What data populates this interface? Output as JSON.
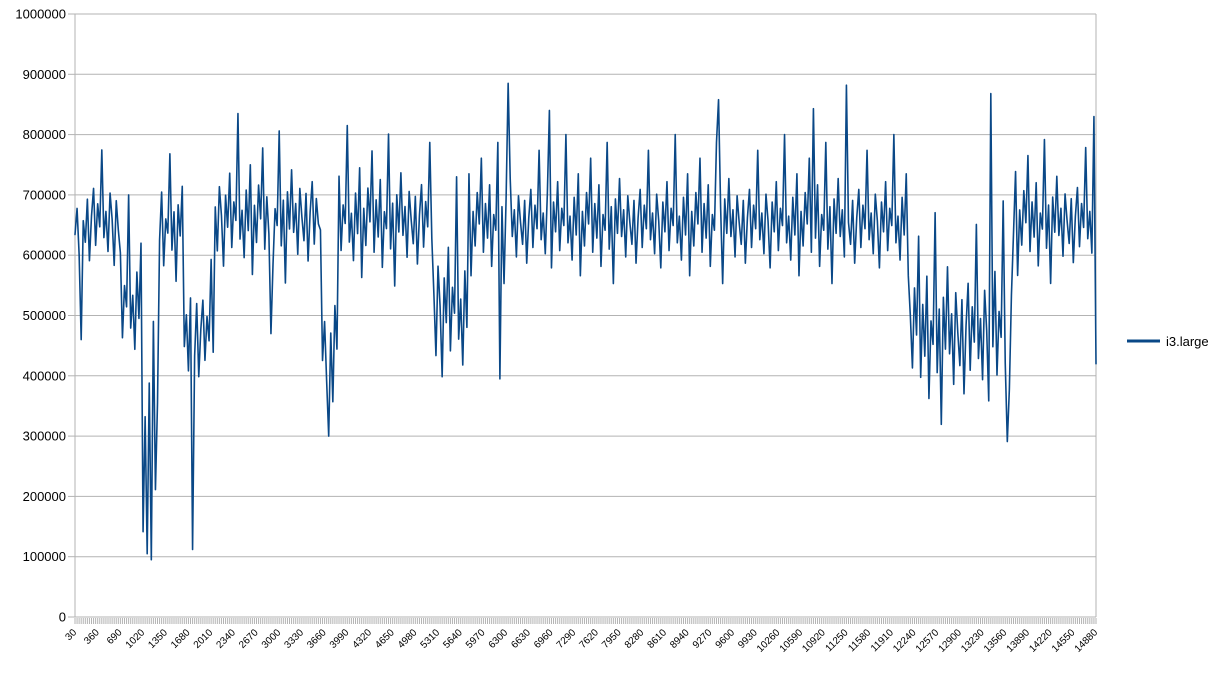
{
  "chart_data": {
    "type": "line",
    "title": "",
    "xlabel": "",
    "ylabel": "",
    "ylim": [
      0,
      1000000
    ],
    "y_ticks": [
      0,
      100000,
      200000,
      300000,
      400000,
      500000,
      600000,
      700000,
      800000,
      900000,
      1000000
    ],
    "x": {
      "start": 30,
      "step": 30,
      "end": 14880,
      "n_points": 496
    },
    "x_label_every_n_points": 11,
    "x_tick_labels": [
      "30",
      "360",
      "690",
      "1020",
      "1350",
      "1680",
      "2010",
      "2340",
      "2670",
      "3000",
      "3330",
      "3660",
      "3990",
      "4320",
      "4650",
      "4980",
      "5310",
      "5640",
      "5970",
      "6300",
      "6630",
      "6960",
      "7290",
      "7620",
      "7950",
      "8280",
      "8610",
      "8940",
      "9270",
      "9600",
      "9930",
      "10260",
      "10590",
      "10920",
      "11250",
      "11580",
      "11910",
      "12240",
      "12570",
      "12900",
      "13230",
      "13560",
      "13890",
      "14220",
      "14550",
      "14880"
    ],
    "grid": "horizontal",
    "legend_position": "right-middle",
    "colors": {
      "grid": "#b3b3b3",
      "axis": "#b3b3b3",
      "text": "#000000",
      "background": "#ffffff"
    },
    "series": [
      {
        "name": "i3.large",
        "color": "#0a4887",
        "approx_values_at_labeled_x": [
          650000,
          650000,
          620000,
          400000,
          650000,
          500000,
          480000,
          660000,
          665000,
          655000,
          660000,
          480000,
          650000,
          655000,
          660000,
          650000,
          520000,
          470000,
          655000,
          660000,
          650000,
          655000,
          650000,
          655000,
          650000,
          655000,
          650000,
          655000,
          650000,
          655000,
          650000,
          655000,
          650000,
          655000,
          660000,
          650000,
          655000,
          640000,
          520000,
          510000,
          520000,
          490000,
          640000,
          650000,
          655000,
          630000
        ],
        "band_segments": [
          {
            "from": 30,
            "to": 660,
            "min": 545000,
            "max": 800000
          },
          {
            "from": 661,
            "to": 1015,
            "min": 380000,
            "max": 700000
          },
          {
            "from": 1016,
            "to": 1230,
            "min": 95000,
            "max": 560000
          },
          {
            "from": 1231,
            "to": 1595,
            "min": 545000,
            "max": 780000
          },
          {
            "from": 1596,
            "to": 1820,
            "min": 340000,
            "max": 650000
          },
          {
            "from": 1821,
            "to": 2040,
            "min": 350000,
            "max": 620000
          },
          {
            "from": 2041,
            "to": 3570,
            "min": 540000,
            "max": 820000
          },
          {
            "from": 3571,
            "to": 3840,
            "min": 300000,
            "max": 680000
          },
          {
            "from": 3841,
            "to": 5220,
            "min": 535000,
            "max": 815000
          },
          {
            "from": 5221,
            "to": 5730,
            "min": 340000,
            "max": 730000
          },
          {
            "from": 5731,
            "to": 12150,
            "min": 540000,
            "max": 800000
          },
          {
            "from": 12151,
            "to": 13660,
            "min": 300000,
            "max": 690000
          },
          {
            "from": 13661,
            "to": 14880,
            "min": 540000,
            "max": 805000
          }
        ],
        "spikes": [
          {
            "x": 120,
            "y": 460000
          },
          {
            "x": 1080,
            "y": 105000
          },
          {
            "x": 1140,
            "y": 95000
          },
          {
            "x": 1740,
            "y": 112000
          },
          {
            "x": 2400,
            "y": 835000
          },
          {
            "x": 2880,
            "y": 470000
          },
          {
            "x": 3720,
            "y": 300000
          },
          {
            "x": 6210,
            "y": 395000
          },
          {
            "x": 6330,
            "y": 885000
          },
          {
            "x": 6930,
            "y": 840000
          },
          {
            "x": 9390,
            "y": 858000
          },
          {
            "x": 10770,
            "y": 843000
          },
          {
            "x": 11250,
            "y": 882000
          },
          {
            "x": 13350,
            "y": 868000
          },
          {
            "x": 13590,
            "y": 291000
          },
          {
            "x": 14850,
            "y": 830000
          },
          {
            "x": 14880,
            "y": 420000
          }
        ],
        "noise_pattern": [
          0.35,
          0.52,
          0.22,
          0.61,
          0.44,
          0.3,
          0.58,
          0.18,
          0.47,
          0.65,
          0.28,
          0.55,
          0.4,
          0.9,
          0.33,
          0.5,
          0.24,
          0.62,
          0.45,
          0.15,
          0.57,
          0.38,
          0.7,
          0.26,
          0.53,
          0.42,
          1.0,
          0.31,
          0.48,
          0.2,
          0.6,
          0.36,
          0.75,
          0.1,
          0.51,
          0.29,
          0.63,
          0.43,
          0.85,
          0.25,
          0.56,
          0.34,
          0.68,
          0.16,
          0.49,
          0.39,
          0.95,
          0.27,
          0.54,
          0.05,
          0.59,
          0.37,
          0.72
        ]
      }
    ]
  }
}
